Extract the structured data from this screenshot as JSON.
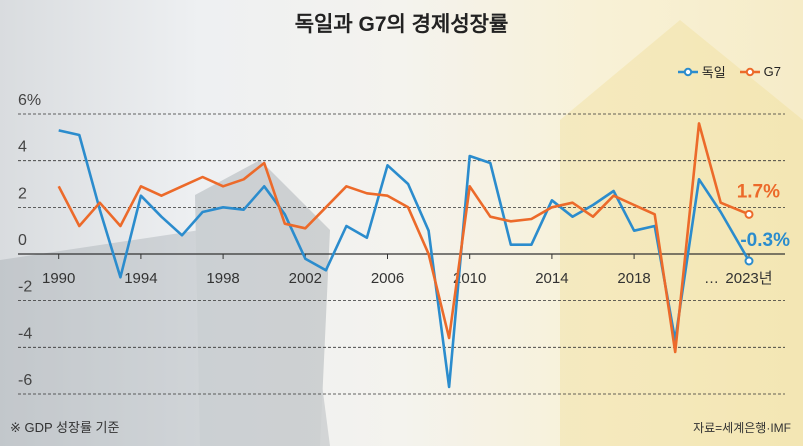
{
  "chart_data": {
    "type": "line",
    "title": "독일과 G7의 경제성장률",
    "xlabel": "",
    "ylabel": "",
    "x": [
      1990,
      1991,
      1992,
      1993,
      1994,
      1995,
      1996,
      1997,
      1998,
      1999,
      2000,
      2001,
      2002,
      2003,
      2004,
      2005,
      2006,
      2007,
      2008,
      2009,
      2010,
      2011,
      2012,
      2013,
      2014,
      2015,
      2016,
      2017,
      2018,
      2019,
      2020,
      2021,
      2022,
      2023
    ],
    "x_tick_labels": [
      {
        "x": 1990,
        "label": "1990"
      },
      {
        "x": 1994,
        "label": "1994"
      },
      {
        "x": 1998,
        "label": "1998"
      },
      {
        "x": 2002,
        "label": "2002"
      },
      {
        "x": 2006,
        "label": "2006"
      },
      {
        "x": 2010,
        "label": "2010"
      },
      {
        "x": 2014,
        "label": "2014"
      },
      {
        "x": 2018,
        "label": "2018"
      },
      {
        "x": 2021.5,
        "label": "…"
      },
      {
        "x": 2023,
        "label": "2023년"
      }
    ],
    "y_ticks": [
      {
        "v": 6,
        "label": "6%"
      },
      {
        "v": 4,
        "label": "4"
      },
      {
        "v": 2,
        "label": "2"
      },
      {
        "v": 0,
        "label": "0"
      },
      {
        "v": -2,
        "label": "-2"
      },
      {
        "v": -4,
        "label": "-4"
      },
      {
        "v": -6,
        "label": "-6"
      }
    ],
    "ylim": [
      -6,
      6
    ],
    "grid": true,
    "legend_position": "top-right",
    "series": [
      {
        "name": "독일",
        "color": "#2b8ccd",
        "values": [
          5.3,
          5.1,
          1.9,
          -1.0,
          2.5,
          1.6,
          0.8,
          1.8,
          2.0,
          1.9,
          2.9,
          1.7,
          -0.2,
          -0.7,
          1.2,
          0.7,
          3.8,
          3.0,
          1.0,
          -5.7,
          4.2,
          3.9,
          0.4,
          0.4,
          2.3,
          1.6,
          2.1,
          2.7,
          1.0,
          1.2,
          -3.7,
          3.2,
          1.8,
          -0.3
        ],
        "end_label": "-0.3%"
      },
      {
        "name": "G7",
        "color": "#ec6a2a",
        "values": [
          2.9,
          1.2,
          2.2,
          1.2,
          2.9,
          2.5,
          2.9,
          3.3,
          2.9,
          3.2,
          3.9,
          1.3,
          1.1,
          2.0,
          2.9,
          2.6,
          2.5,
          2.0,
          0.0,
          -3.6,
          2.9,
          1.6,
          1.4,
          1.5,
          2.0,
          2.2,
          1.6,
          2.5,
          2.1,
          1.7,
          -4.2,
          5.6,
          2.2,
          1.7
        ],
        "end_label": "1.7%"
      }
    ],
    "note": "※ GDP 성장률 기준",
    "source": "자료=세계은행·IMF"
  }
}
